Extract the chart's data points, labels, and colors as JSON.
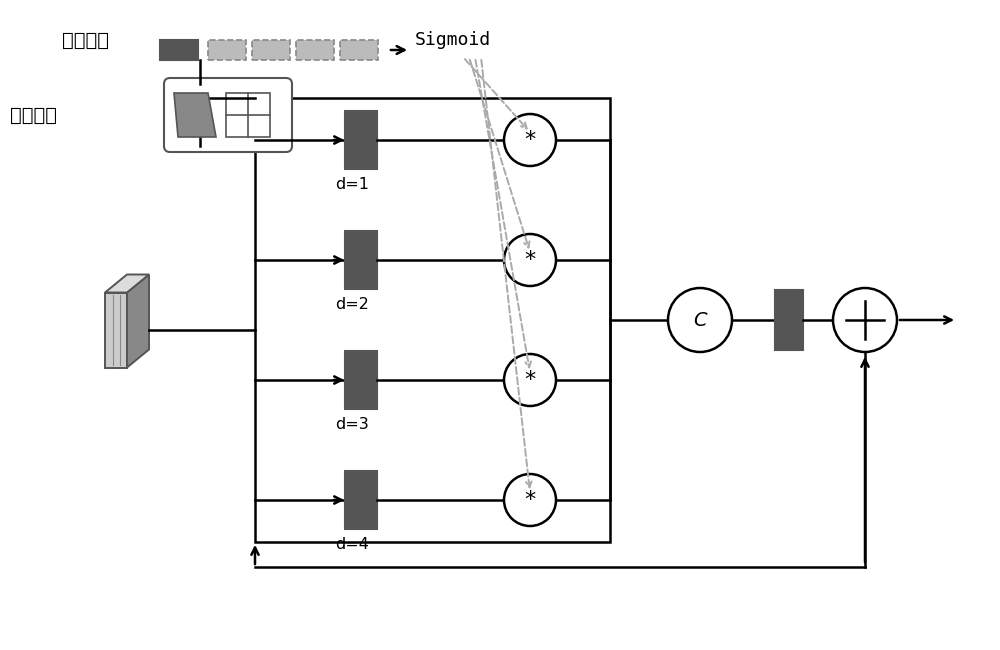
{
  "bg_color": "#ffffff",
  "dark_gray": "#555555",
  "mid_gray": "#888888",
  "light_gray": "#aaaaaa",
  "black": "#000000",
  "dashed_color": "#aaaaaa",
  "text_quanlianjie": "全连接层",
  "text_sigmoid": "Sigmoid",
  "text_kongjian": "空间池化",
  "d_labels": [
    "d=1",
    "d=2",
    "d=3",
    "d=4"
  ],
  "concat_label": "C",
  "figsize": [
    10,
    6.5
  ],
  "dpi": 100
}
